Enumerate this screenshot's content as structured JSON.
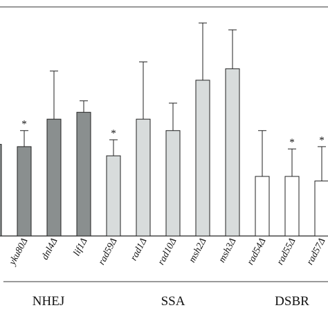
{
  "chart_data": {
    "type": "bar",
    "title": "",
    "xlabel": "",
    "ylabel": "",
    "ylim": [
      0,
      100
    ],
    "grid": false,
    "legend": "none",
    "categories": [
      "yku80Δ",
      "dnl4Δ",
      "lif1Δ",
      "rad59Δ",
      "rad1Δ",
      "rad10Δ",
      "msh2Δ",
      "msh3Δ",
      "rad54Δ",
      "rad55Δ",
      "rad57Δ"
    ],
    "values": [
      39,
      51,
      54,
      35,
      51,
      46,
      68,
      73,
      26,
      26,
      24
    ],
    "errors": [
      7,
      21,
      5,
      7,
      25,
      12,
      25,
      17,
      20,
      12,
      15
    ],
    "significant": [
      true,
      false,
      false,
      true,
      false,
      false,
      false,
      false,
      false,
      true,
      true
    ],
    "significance_marker": "*",
    "bar_colors": [
      "#8a8f8f",
      "#8a8f8f",
      "#8a8f8f",
      "#d8dcdc",
      "#d8dcdc",
      "#d8dcdc",
      "#d8dcdc",
      "#d8dcdc",
      "#ffffff",
      "#ffffff",
      "#ffffff"
    ],
    "partial_left_bar_value": 40,
    "groups": [
      {
        "label": "NHEJ",
        "start": 0,
        "end": 2
      },
      {
        "label": "SSA",
        "start": 3,
        "end": 7
      },
      {
        "label": "DSBR",
        "start": 8,
        "end": 10
      }
    ]
  }
}
